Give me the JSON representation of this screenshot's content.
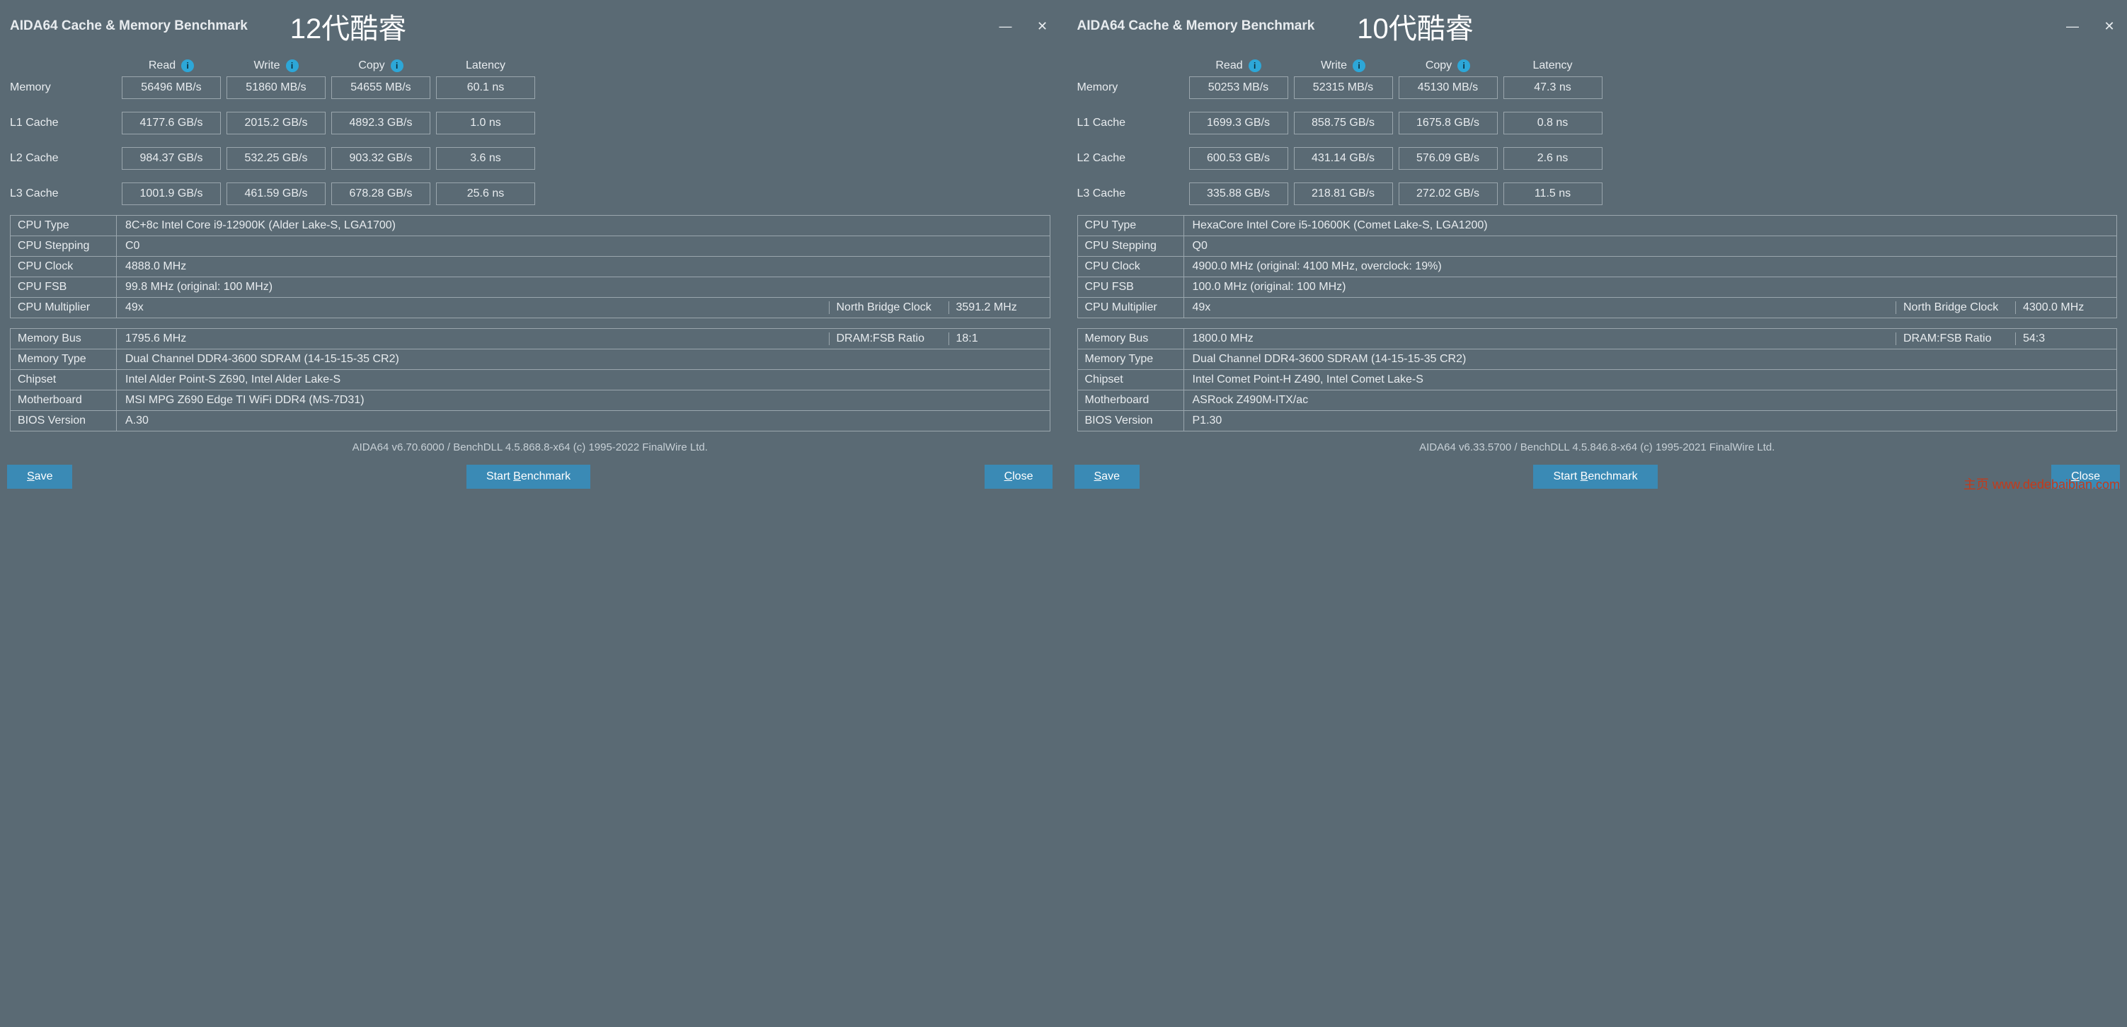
{
  "colors": {
    "background": "#5a6a74",
    "text": "#e8ecef",
    "border": "#9aa6ad",
    "button_bg": "#3a8ab5",
    "info_icon": "#2da7d8",
    "watermark": "#c43a1a"
  },
  "watermark": "主页   www.dedebaibian.com",
  "panels": [
    {
      "title": "AIDA64 Cache & Memory Benchmark",
      "overlay": "12代酷睿",
      "headers": [
        "Read",
        "Write",
        "Copy",
        "Latency"
      ],
      "bench": [
        {
          "label": "Memory",
          "read": "56496 MB/s",
          "write": "51860 MB/s",
          "copy": "54655 MB/s",
          "latency": "60.1 ns"
        },
        {
          "label": "L1 Cache",
          "read": "4177.6 GB/s",
          "write": "2015.2 GB/s",
          "copy": "4892.3 GB/s",
          "latency": "1.0 ns"
        },
        {
          "label": "L2 Cache",
          "read": "984.37 GB/s",
          "write": "532.25 GB/s",
          "copy": "903.32 GB/s",
          "latency": "3.6 ns"
        },
        {
          "label": "L3 Cache",
          "read": "1001.9 GB/s",
          "write": "461.59 GB/s",
          "copy": "678.28 GB/s",
          "latency": "25.6 ns"
        }
      ],
      "cpu": [
        {
          "label": "CPU Type",
          "value": "8C+8c Intel Core i9-12900K  (Alder Lake-S, LGA1700)"
        },
        {
          "label": "CPU Stepping",
          "value": "C0"
        },
        {
          "label": "CPU Clock",
          "value": "4888.0 MHz"
        },
        {
          "label": "CPU FSB",
          "value": "99.8 MHz  (original: 100 MHz)"
        },
        {
          "label": "CPU Multiplier",
          "value": "49x",
          "extra_label": "North Bridge Clock",
          "extra_value": "3591.2 MHz"
        }
      ],
      "mem": [
        {
          "label": "Memory Bus",
          "value": "1795.6 MHz",
          "extra_label": "DRAM:FSB Ratio",
          "extra_value": "18:1"
        },
        {
          "label": "Memory Type",
          "value": "Dual Channel DDR4-3600 SDRAM  (14-15-15-35 CR2)"
        },
        {
          "label": "Chipset",
          "value": "Intel Alder Point-S Z690, Intel Alder Lake-S"
        },
        {
          "label": "Motherboard",
          "value": "MSI MPG Z690 Edge TI WiFi DDR4 (MS-7D31)"
        },
        {
          "label": "BIOS Version",
          "value": "A.30"
        }
      ],
      "footer": "AIDA64 v6.70.6000 / BenchDLL 4.5.868.8-x64  (c) 1995-2022 FinalWire Ltd.",
      "buttons": {
        "save": "Save",
        "start": "Start Benchmark",
        "close": "Close"
      }
    },
    {
      "title": "AIDA64 Cache & Memory Benchmark",
      "overlay": "10代酷睿",
      "headers": [
        "Read",
        "Write",
        "Copy",
        "Latency"
      ],
      "bench": [
        {
          "label": "Memory",
          "read": "50253 MB/s",
          "write": "52315 MB/s",
          "copy": "45130 MB/s",
          "latency": "47.3 ns"
        },
        {
          "label": "L1 Cache",
          "read": "1699.3 GB/s",
          "write": "858.75 GB/s",
          "copy": "1675.8 GB/s",
          "latency": "0.8 ns"
        },
        {
          "label": "L2 Cache",
          "read": "600.53 GB/s",
          "write": "431.14 GB/s",
          "copy": "576.09 GB/s",
          "latency": "2.6 ns"
        },
        {
          "label": "L3 Cache",
          "read": "335.88 GB/s",
          "write": "218.81 GB/s",
          "copy": "272.02 GB/s",
          "latency": "11.5 ns"
        }
      ],
      "cpu": [
        {
          "label": "CPU Type",
          "value": "HexaCore Intel Core i5-10600K  (Comet Lake-S, LGA1200)"
        },
        {
          "label": "CPU Stepping",
          "value": "Q0"
        },
        {
          "label": "CPU Clock",
          "value": "4900.0 MHz  (original: 4100 MHz, overclock: 19%)"
        },
        {
          "label": "CPU FSB",
          "value": "100.0 MHz  (original: 100 MHz)"
        },
        {
          "label": "CPU Multiplier",
          "value": "49x",
          "extra_label": "North Bridge Clock",
          "extra_value": "4300.0 MHz"
        }
      ],
      "mem": [
        {
          "label": "Memory Bus",
          "value": "1800.0 MHz",
          "extra_label": "DRAM:FSB Ratio",
          "extra_value": "54:3"
        },
        {
          "label": "Memory Type",
          "value": "Dual Channel DDR4-3600 SDRAM  (14-15-15-35 CR2)"
        },
        {
          "label": "Chipset",
          "value": "Intel Comet Point-H Z490, Intel Comet Lake-S"
        },
        {
          "label": "Motherboard",
          "value": "ASRock Z490M-ITX/ac"
        },
        {
          "label": "BIOS Version",
          "value": "P1.30"
        }
      ],
      "footer": "AIDA64 v6.33.5700 / BenchDLL 4.5.846.8-x64  (c) 1995-2021 FinalWire Ltd.",
      "buttons": {
        "save": "Save",
        "start": "Start Benchmark",
        "close": "Close"
      }
    }
  ]
}
